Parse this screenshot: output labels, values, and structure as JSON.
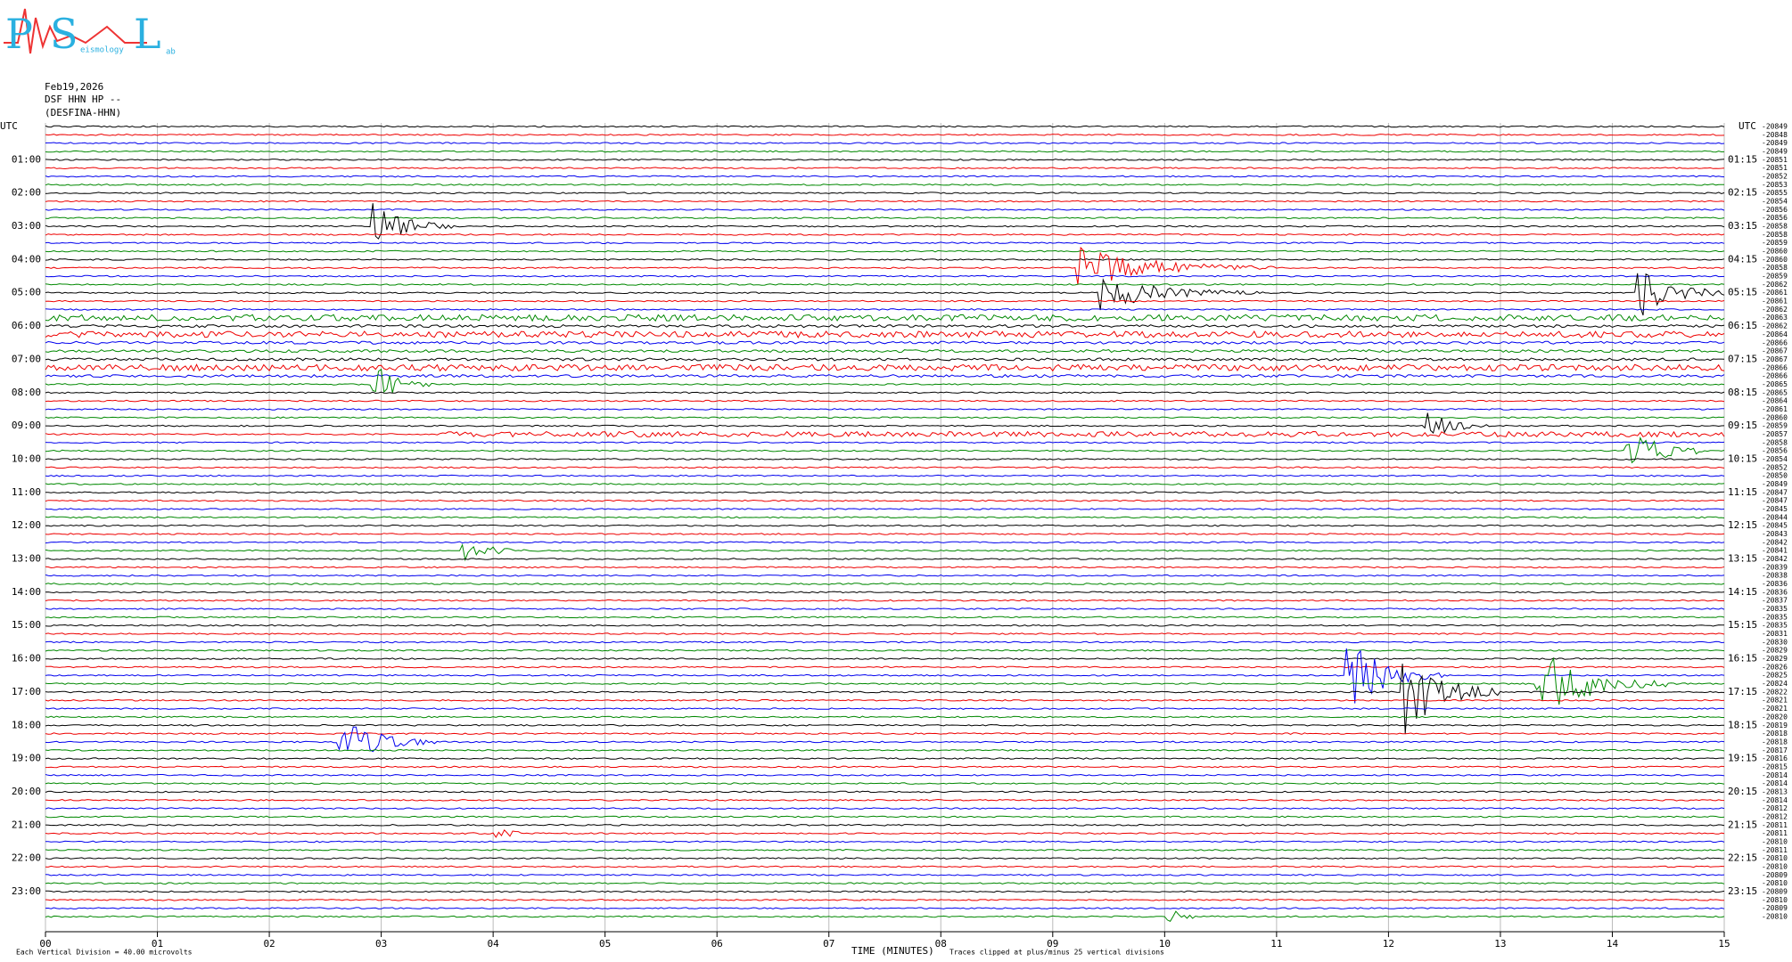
{
  "logo": {
    "p": "P",
    "s": "S",
    "l": "L",
    "small": "eismology",
    "lab": "ab"
  },
  "header": {
    "date": "Feb19,2026",
    "station": "DSF HHN HP --",
    "name": "(DESFINA-HHN)"
  },
  "left_axis": {
    "title": "UTC",
    "hours": [
      "01:00",
      "02:00",
      "03:00",
      "04:00",
      "05:00",
      "06:00",
      "07:00",
      "08:00",
      "09:00",
      "10:00",
      "11:00",
      "12:00",
      "13:00",
      "14:00",
      "15:00",
      "16:00",
      "17:00",
      "18:00",
      "19:00",
      "20:00",
      "21:00",
      "22:00",
      "23:00"
    ]
  },
  "right_axis": {
    "title": "UTC",
    "hours": [
      "01:15",
      "02:15",
      "03:15",
      "04:15",
      "05:15",
      "06:15",
      "07:15",
      "08:15",
      "09:15",
      "10:15",
      "11:15",
      "12:15",
      "13:15",
      "14:15",
      "15:15",
      "16:15",
      "17:15",
      "18:15",
      "19:15",
      "20:15",
      "21:15",
      "22:15",
      "23:15"
    ],
    "offsets": [
      -20849,
      -20848,
      -20849,
      -20849,
      -20851,
      -20851,
      -20852,
      -20853,
      -20855,
      -20854,
      -20856,
      -20856,
      -20858,
      -20858,
      -20859,
      -20860,
      -20860,
      -20858,
      -20859,
      -20862,
      -20861,
      -20861,
      -20862,
      -20863,
      -20862,
      -20864,
      -20866,
      -20867,
      -20867,
      -20866,
      -20866,
      -20865,
      -20865,
      -20864,
      -20861,
      -20860,
      -20859,
      -20857,
      -20858,
      -20856,
      -20854,
      -20852,
      -20850,
      -20849,
      -20847,
      -20847,
      -20845,
      -20844,
      -20845,
      -20843,
      -20842,
      -20841,
      -20842,
      -20839,
      -20838,
      -20836,
      -20836,
      -20837,
      -20835,
      -20835,
      -20835,
      -20831,
      -20830,
      -20829,
      -20829,
      -20826,
      -20825,
      -20824,
      -20822,
      -20821,
      -20821,
      -20820,
      -20819,
      -20818,
      -20818,
      -20817,
      -20816,
      -20815,
      -20814,
      -20814,
      -20813,
      -20814,
      -20812,
      -20812,
      -20811,
      -20811,
      -20810,
      -20811,
      -20810,
      -20810,
      -20809,
      -20810,
      -20809,
      -20810,
      -20809,
      -20810
    ]
  },
  "x_axis": {
    "ticks": [
      "00",
      "01",
      "02",
      "03",
      "04",
      "05",
      "06",
      "07",
      "08",
      "09",
      "10",
      "11",
      "12",
      "13",
      "14",
      "15"
    ],
    "title": "TIME (MINUTES)"
  },
  "footer": {
    "division": "Each Vertical Division =   40.00 microvolts",
    "clip": "Traces clipped at plus/minus 25 vertical divisions"
  }
}
